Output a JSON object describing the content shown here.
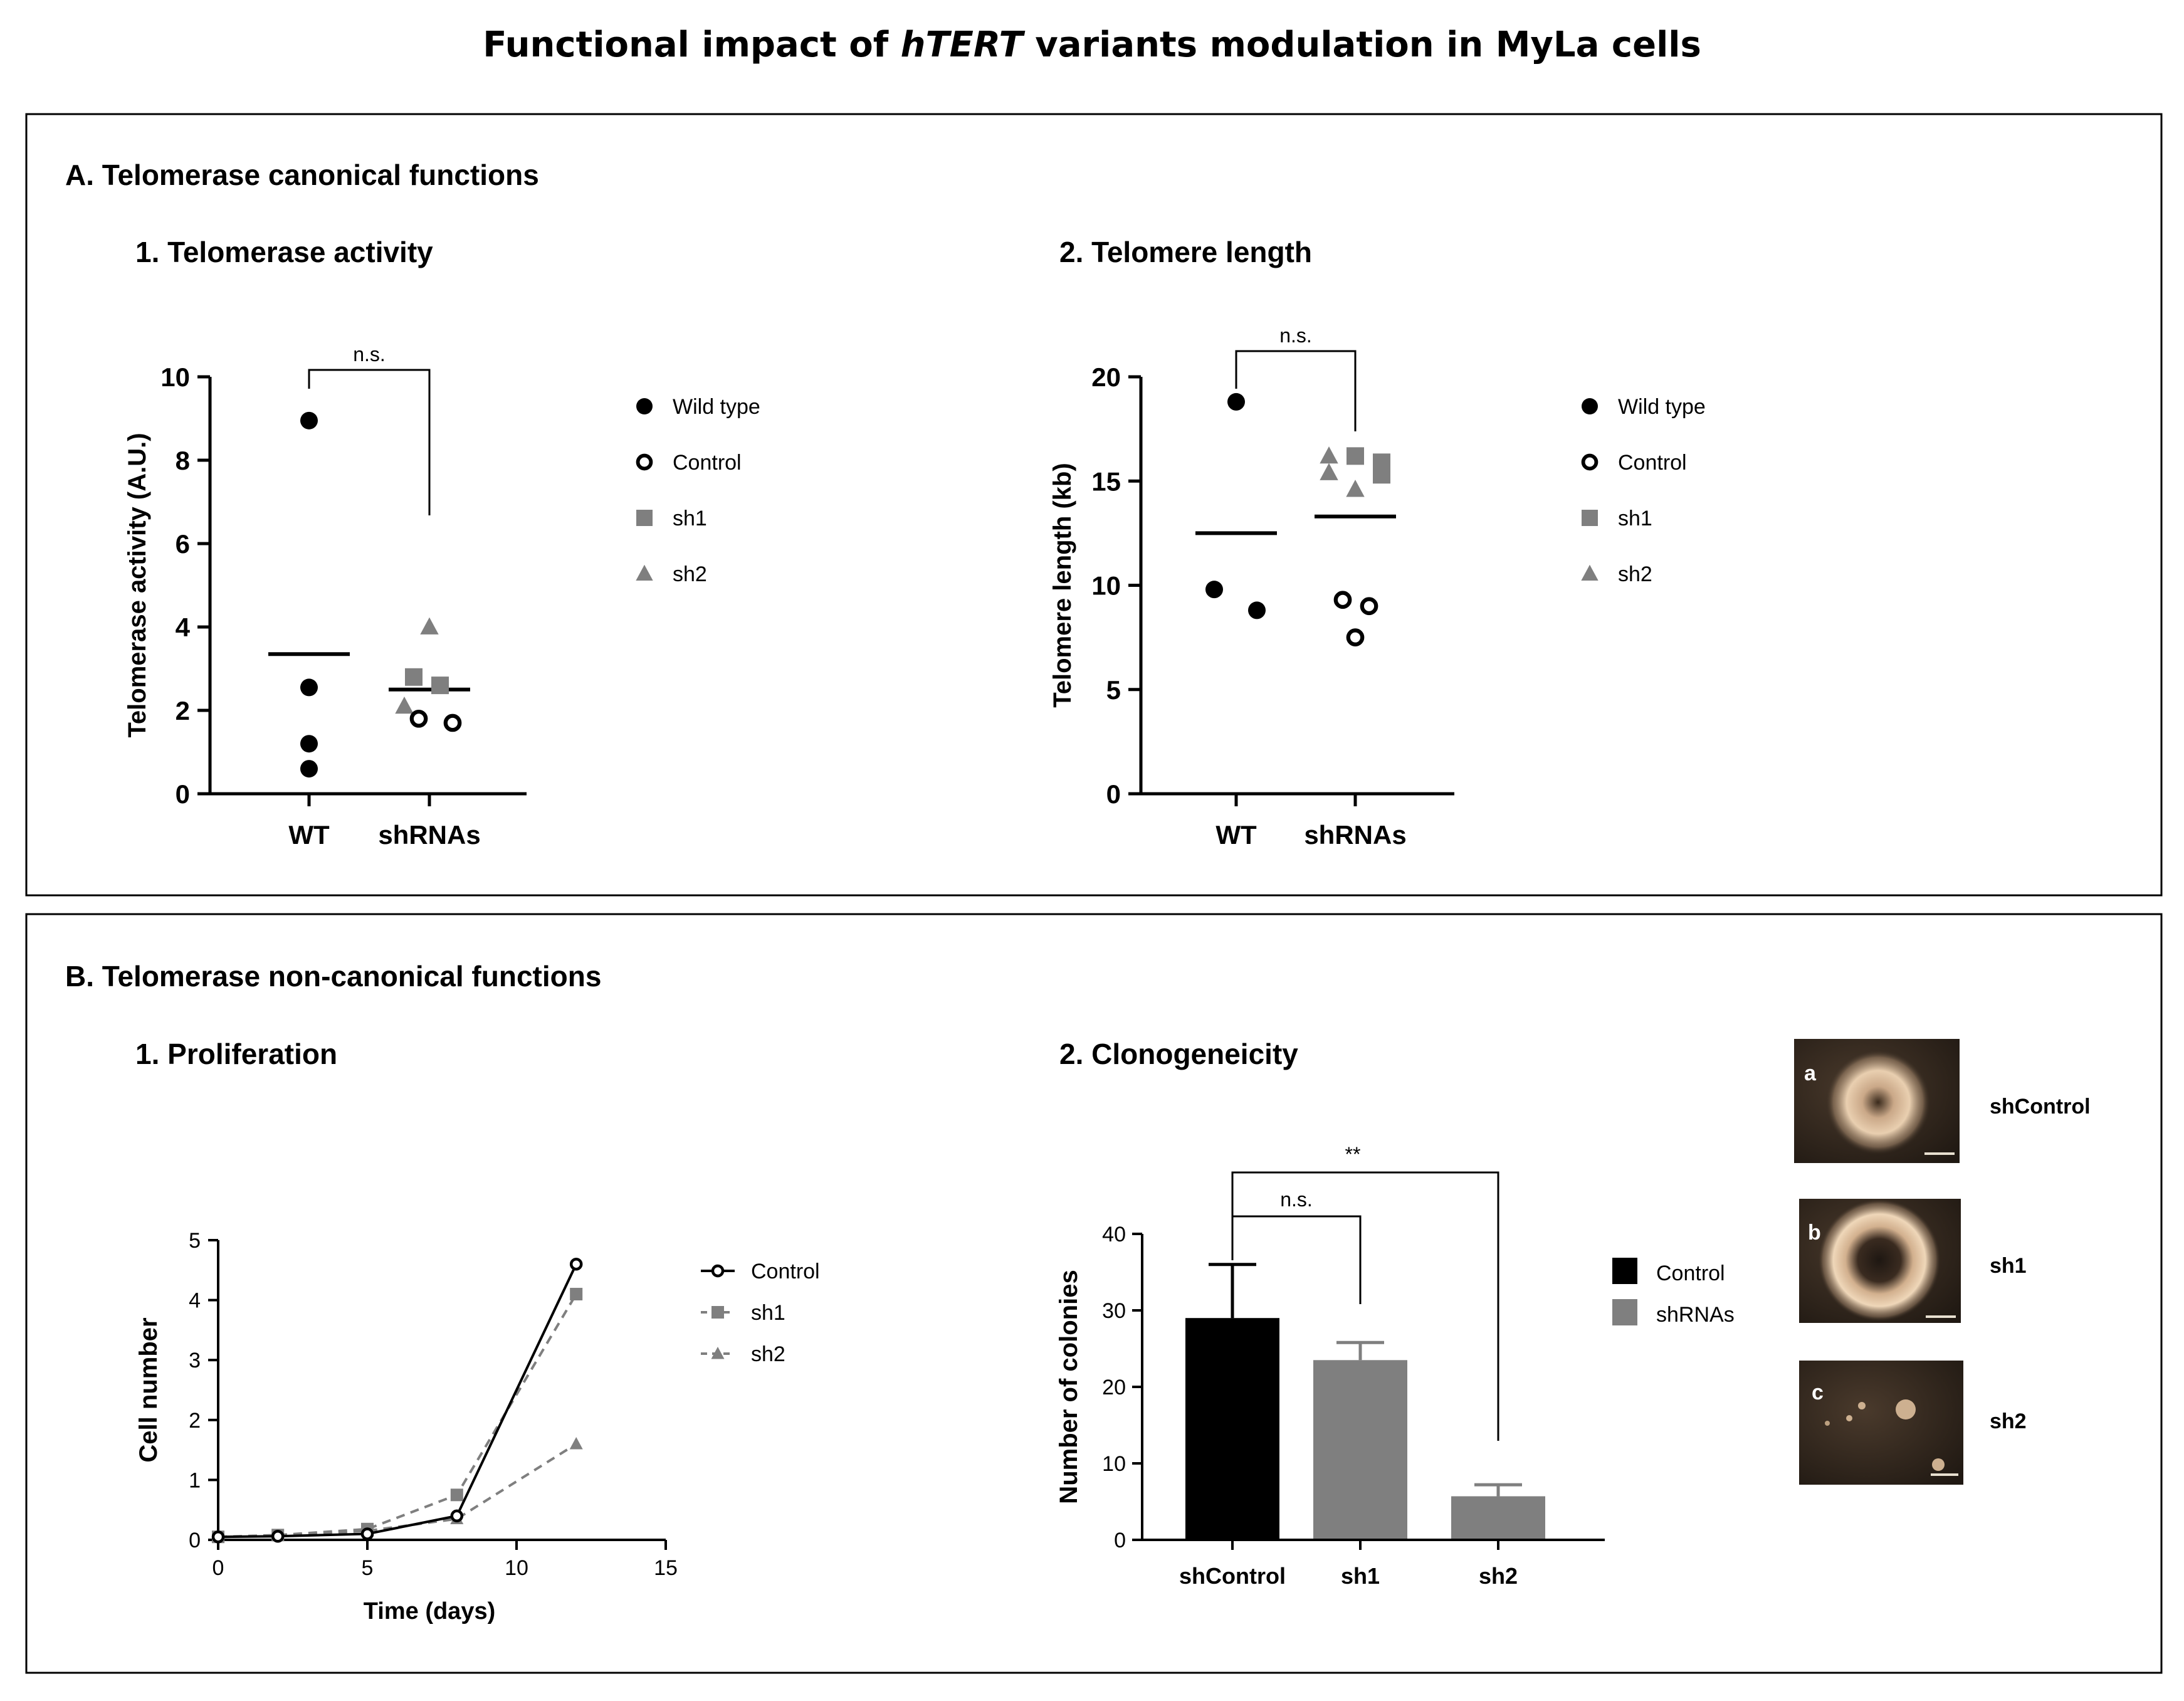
{
  "title": {
    "prefix": "Functional impact of ",
    "italic": "hTERT",
    "suffix": " variants modulation in MyLa cells"
  },
  "colors": {
    "black": "#000000",
    "grey": "#7f7f7f",
    "line": "#000000",
    "dashed": "#7f7f7f"
  },
  "section_a": {
    "heading": "A. Telomerase canonical functions"
  },
  "section_b": {
    "heading": "B. Telomerase non-canonical functions"
  },
  "legend_scatter": [
    {
      "label": "Wild type",
      "marker": "filled-circle",
      "color": "#000000"
    },
    {
      "label": "Control",
      "marker": "open-circle",
      "color": "#000000"
    },
    {
      "label": "sh1",
      "marker": "square",
      "color": "#7f7f7f"
    },
    {
      "label": "sh2",
      "marker": "triangle",
      "color": "#7f7f7f"
    }
  ],
  "chart_data": [
    {
      "id": "a1",
      "panel_title": "1. Telomerase activity",
      "type": "scatter",
      "categories": [
        "WT",
        "shRNAs"
      ],
      "ylabel": "Telomerase activity (A.U.)",
      "ylim": [
        0,
        10
      ],
      "yticks": [
        "0",
        "2",
        "4",
        "6",
        "8",
        "10"
      ],
      "significance": "n.s.",
      "means": [
        3.35,
        2.5
      ],
      "points": [
        {
          "group": "WT",
          "series": "Wild type",
          "y": 8.95
        },
        {
          "group": "WT",
          "series": "Wild type",
          "y": 2.55
        },
        {
          "group": "WT",
          "series": "Wild type",
          "y": 1.2
        },
        {
          "group": "WT",
          "series": "Wild type",
          "y": 0.6
        },
        {
          "group": "shRNAs",
          "series": "sh2",
          "y": 4.0
        },
        {
          "group": "shRNAs",
          "series": "sh1",
          "y": 2.8
        },
        {
          "group": "shRNAs",
          "series": "sh1",
          "y": 2.6
        },
        {
          "group": "shRNAs",
          "series": "sh2",
          "y": 2.1
        },
        {
          "group": "shRNAs",
          "series": "Control",
          "y": 1.8
        },
        {
          "group": "shRNAs",
          "series": "Control",
          "y": 1.7
        }
      ]
    },
    {
      "id": "a2",
      "panel_title": "2. Telomere length",
      "type": "scatter",
      "categories": [
        "WT",
        "shRNAs"
      ],
      "ylabel": "Telomere length (kb)",
      "ylim": [
        0,
        20
      ],
      "yticks": [
        "0",
        "5",
        "10",
        "15",
        "20"
      ],
      "significance": "n.s.",
      "means": [
        12.5,
        13.3
      ],
      "points": [
        {
          "group": "WT",
          "series": "Wild type",
          "y": 18.8
        },
        {
          "group": "WT",
          "series": "Wild type",
          "y": 9.8
        },
        {
          "group": "WT",
          "series": "Wild type",
          "y": 8.8
        },
        {
          "group": "shRNAs",
          "series": "sh2",
          "y": 16.2
        },
        {
          "group": "shRNAs",
          "series": "sh1",
          "y": 16.2
        },
        {
          "group": "shRNAs",
          "series": "sh1",
          "y": 15.9
        },
        {
          "group": "shRNAs",
          "series": "sh2",
          "y": 15.4
        },
        {
          "group": "shRNAs",
          "series": "sh1",
          "y": 15.3
        },
        {
          "group": "shRNAs",
          "series": "sh2",
          "y": 14.6
        },
        {
          "group": "shRNAs",
          "series": "Control",
          "y": 9.3
        },
        {
          "group": "shRNAs",
          "series": "Control",
          "y": 9.0
        },
        {
          "group": "shRNAs",
          "series": "Control",
          "y": 7.5
        }
      ]
    },
    {
      "id": "b1",
      "panel_title": "1. Proliferation",
      "type": "line",
      "xlabel": "Time (days)",
      "ylabel": "Cell number",
      "xlim": [
        0,
        15
      ],
      "ylim": [
        0,
        5
      ],
      "xticks": [
        "0",
        "5",
        "10",
        "15"
      ],
      "yticks": [
        "0",
        "1",
        "2",
        "3",
        "4",
        "5"
      ],
      "series": [
        {
          "name": "Control",
          "style": "solid-open-circle",
          "x": [
            0,
            2,
            5,
            8,
            12
          ],
          "y": [
            0.05,
            0.06,
            0.1,
            0.4,
            4.6
          ]
        },
        {
          "name": "sh1",
          "style": "dashed-square",
          "x": [
            0,
            2,
            5,
            8,
            12
          ],
          "y": [
            0.05,
            0.08,
            0.18,
            0.75,
            4.1
          ]
        },
        {
          "name": "sh2",
          "style": "dashed-triangle",
          "x": [
            0,
            2,
            5,
            8,
            12
          ],
          "y": [
            0.05,
            0.07,
            0.15,
            0.35,
            1.6
          ]
        }
      ]
    },
    {
      "id": "b2",
      "panel_title": "2. Clonogeneicity",
      "type": "bar",
      "ylabel": "Number of colonies",
      "categories": [
        "shControl",
        "sh1",
        "sh2"
      ],
      "values": [
        29,
        23.5,
        5.7
      ],
      "errors": [
        7,
        2.3,
        1.5
      ],
      "bar_colors": [
        "#000000",
        "#7f7f7f",
        "#7f7f7f"
      ],
      "ylim": [
        0,
        40
      ],
      "yticks": [
        "0",
        "10",
        "20",
        "30",
        "40"
      ],
      "legend": [
        {
          "label": "Control",
          "color": "#000000"
        },
        {
          "label": "shRNAs",
          "color": "#7f7f7f"
        }
      ],
      "comparisons": [
        {
          "from": "shControl",
          "to": "sh1",
          "label": "n.s."
        },
        {
          "from": "shControl",
          "to": "sh2",
          "label": "**"
        }
      ]
    }
  ],
  "micrographs": [
    {
      "letter": "a",
      "label": "shControl"
    },
    {
      "letter": "b",
      "label": "sh1"
    },
    {
      "letter": "c",
      "label": "sh2"
    }
  ]
}
